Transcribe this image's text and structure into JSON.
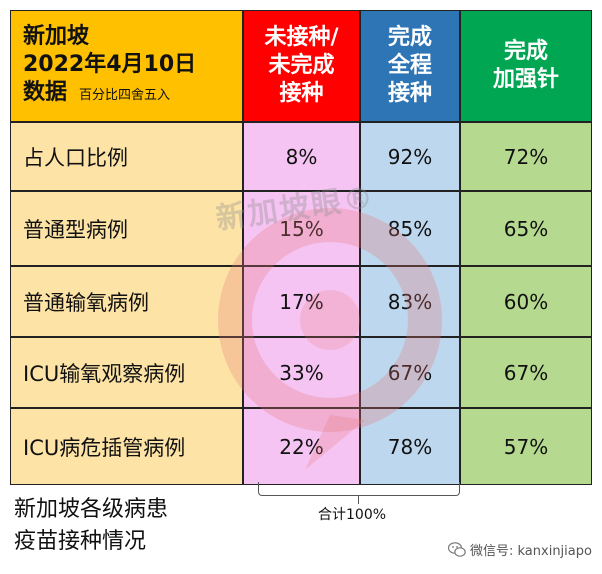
{
  "header": {
    "title_line1": "新加坡",
    "title_line2": "2022年4月10日",
    "title_line3": "数据",
    "note": "百分比四舍五入",
    "col_unvax": "未接种/\n未完成\n接种",
    "col_full": "完成\n全程\n接种",
    "col_boost": "完成\n加强针"
  },
  "rows": [
    {
      "label": "占人口比例",
      "unvax": "8%",
      "full": "92%",
      "boost": "72%"
    },
    {
      "label": "普通型病例",
      "unvax": "15%",
      "full": "85%",
      "boost": "65%"
    },
    {
      "label": "普通输氧病例",
      "unvax": "17%",
      "full": "83%",
      "boost": "60%"
    },
    {
      "label": "ICU输氧观察病例",
      "unvax": "33%",
      "full": "67%",
      "boost": "67%"
    },
    {
      "label": "ICU病危插管病例",
      "unvax": "22%",
      "full": "78%",
      "boost": "57%"
    }
  ],
  "total_note": "合计100%",
  "caption": "新加坡各级病患\n疫苗接种情况",
  "watermark": "新加坡眼®",
  "wechat": "微信号: kanxinjiapo",
  "colors": {
    "title_bg": "#ffc000",
    "unvax_header": "#ff0000",
    "full_header": "#2e75b6",
    "boost_header": "#00a651",
    "label_bg": "#fde4a6",
    "unvax_bg": "#f6c4f3",
    "full_bg": "#bdd7ee",
    "boost_bg": "#b5d98f"
  }
}
